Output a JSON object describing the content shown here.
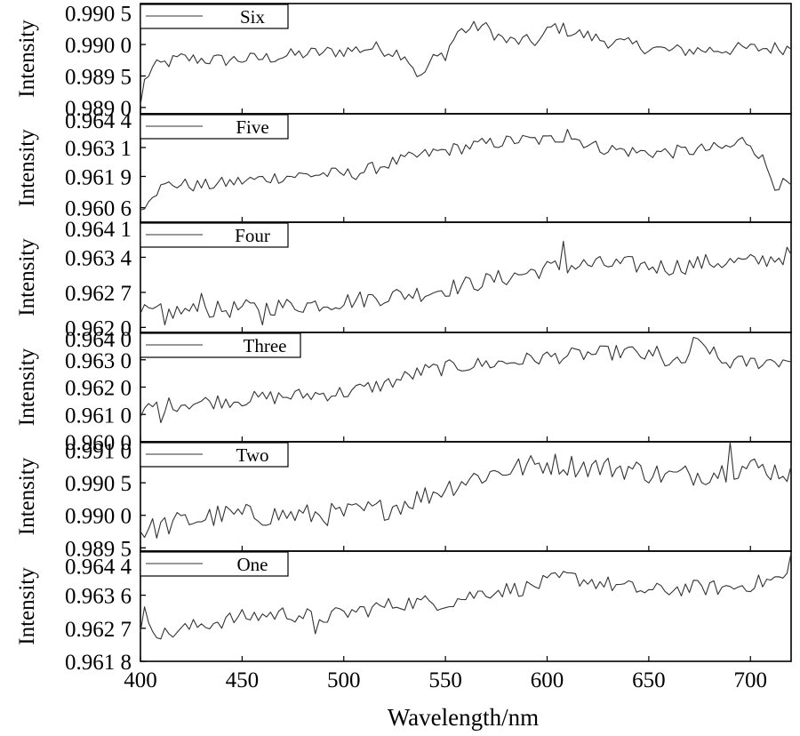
{
  "chart_data": {
    "type": "line",
    "xlabel": "Wavelength/nm",
    "xlim": [
      400,
      720
    ],
    "x_ticks": [
      "400",
      "450",
      "500",
      "550",
      "600",
      "650",
      "700"
    ],
    "x_tick_values": [
      400,
      450,
      500,
      550,
      600,
      650,
      700
    ],
    "x_step": 2,
    "panels": [
      {
        "name": "Six",
        "ylabel": "Intensity",
        "ylim": [
          0.9889,
          0.99065
        ],
        "y_ticks": [
          {
            "value": 0.989,
            "label": "0.989 0"
          },
          {
            "value": 0.9895,
            "label": "0.989 5"
          },
          {
            "value": 0.99,
            "label": "0.990 0"
          },
          {
            "value": 0.9905,
            "label": "0.990 5"
          }
        ],
        "anchors": [
          [
            400,
            0.98904
          ],
          [
            401,
            0.98935
          ],
          [
            405,
            0.9896
          ],
          [
            410,
            0.98968
          ],
          [
            420,
            0.98978
          ],
          [
            440,
            0.98975
          ],
          [
            460,
            0.98978
          ],
          [
            480,
            0.98985
          ],
          [
            500,
            0.9899
          ],
          [
            515,
            0.98995
          ],
          [
            530,
            0.98985
          ],
          [
            538,
            0.98945
          ],
          [
            543,
            0.98975
          ],
          [
            550,
            0.98985
          ],
          [
            556,
            0.9902
          ],
          [
            568,
            0.9903
          ],
          [
            580,
            0.99005
          ],
          [
            596,
            0.99005
          ],
          [
            603,
            0.9903
          ],
          [
            612,
            0.9902
          ],
          [
            630,
            0.99005
          ],
          [
            660,
            0.9899
          ],
          [
            720,
            0.98995
          ]
        ],
        "noise": 0.00011,
        "spikes": [
          [
            521,
            0.9901
          ],
          [
            569,
            0.99062
          ],
          [
            561,
            0.99052
          ],
          [
            575,
            0.9904
          ],
          [
            599,
            0.99048
          ],
          [
            617,
            0.99025
          ]
        ]
      },
      {
        "name": "Five",
        "ylabel": "Intensity",
        "ylim": [
          0.96,
          0.9645
        ],
        "y_ticks": [
          {
            "value": 0.9606,
            "label": "0.960 6"
          },
          {
            "value": 0.9619,
            "label": "0.961 9"
          },
          {
            "value": 0.9631,
            "label": "0.963 1"
          },
          {
            "value": 0.9644,
            "label": "0.964 4"
          }
        ],
        "anchors": [
          [
            400,
            0.9605
          ],
          [
            405,
            0.9612
          ],
          [
            415,
            0.9616
          ],
          [
            430,
            0.9615
          ],
          [
            450,
            0.9617
          ],
          [
            470,
            0.9619
          ],
          [
            490,
            0.962
          ],
          [
            505,
            0.962
          ],
          [
            525,
            0.9625
          ],
          [
            545,
            0.9629
          ],
          [
            565,
            0.9632
          ],
          [
            585,
            0.9634
          ],
          [
            600,
            0.9634
          ],
          [
            610,
            0.9636
          ],
          [
            625,
            0.9631
          ],
          [
            645,
            0.9629
          ],
          [
            660,
            0.9629
          ],
          [
            675,
            0.963
          ],
          [
            690,
            0.9631
          ],
          [
            696,
            0.9634
          ],
          [
            700,
            0.9633
          ],
          [
            706,
            0.9626
          ],
          [
            712,
            0.9616
          ],
          [
            720,
            0.9615
          ]
        ],
        "noise": 0.00028,
        "spikes": [
          [
            610,
            0.96385
          ],
          [
            599,
            0.96355
          ],
          [
            523,
            0.9628
          ],
          [
            528,
            0.9628
          ]
        ]
      },
      {
        "name": "Four",
        "ylabel": "Intensity",
        "ylim": [
          0.9619,
          0.9641
        ],
        "y_ticks": [
          {
            "value": 0.962,
            "label": "0.962 0"
          },
          {
            "value": 0.9627,
            "label": "0.962 7"
          },
          {
            "value": 0.9634,
            "label": "0.963 4"
          },
          {
            "value": 0.9641,
            "label": "0.964 1"
          }
        ],
        "anchors": [
          [
            400,
            0.96228
          ],
          [
            420,
            0.96232
          ],
          [
            440,
            0.96235
          ],
          [
            460,
            0.9624
          ],
          [
            480,
            0.96245
          ],
          [
            500,
            0.96252
          ],
          [
            520,
            0.96262
          ],
          [
            540,
            0.9627
          ],
          [
            560,
            0.96285
          ],
          [
            580,
            0.963
          ],
          [
            600,
            0.96318
          ],
          [
            620,
            0.96325
          ],
          [
            640,
            0.96325
          ],
          [
            660,
            0.9632
          ],
          [
            680,
            0.9633
          ],
          [
            700,
            0.9633
          ],
          [
            720,
            0.96345
          ]
        ],
        "noise": 0.00018,
        "spikes": [
          [
            430,
            0.96268
          ],
          [
            681,
            0.96378
          ],
          [
            608,
            0.96372
          ],
          [
            412,
            0.96205
          ],
          [
            460,
            0.96205
          ]
        ]
      },
      {
        "name": "Three",
        "ylabel": "Intensity",
        "ylim": [
          0.96,
          0.964
        ],
        "y_ticks": [
          {
            "value": 0.96,
            "label": "0.960 0"
          },
          {
            "value": 0.961,
            "label": "0.961 0"
          },
          {
            "value": 0.962,
            "label": "0.962 0"
          },
          {
            "value": 0.963,
            "label": "0.963 0"
          },
          {
            "value": 0.964,
            "label": "0.964 0"
          }
        ],
        "anchors": [
          [
            400,
            0.9609
          ],
          [
            405,
            0.9613
          ],
          [
            420,
            0.9614
          ],
          [
            440,
            0.9615
          ],
          [
            460,
            0.9616
          ],
          [
            480,
            0.9617
          ],
          [
            500,
            0.9618
          ],
          [
            520,
            0.9621
          ],
          [
            540,
            0.9626
          ],
          [
            560,
            0.9628
          ],
          [
            580,
            0.9629
          ],
          [
            600,
            0.9631
          ],
          [
            620,
            0.9632
          ],
          [
            640,
            0.9633
          ],
          [
            660,
            0.9629
          ],
          [
            667,
            0.9628
          ],
          [
            672,
            0.9636
          ],
          [
            680,
            0.9634
          ],
          [
            685,
            0.9629
          ],
          [
            700,
            0.9629
          ],
          [
            720,
            0.963
          ]
        ],
        "noise": 0.00028,
        "spikes": [
          [
            403,
            0.9607
          ],
          [
            410,
            0.9607
          ],
          [
            654,
            0.9635
          ]
        ]
      },
      {
        "name": "Two",
        "ylabel": "Intensity",
        "ylim": [
          0.98945,
          0.99113
        ],
        "y_ticks": [
          {
            "value": 0.9895,
            "label": "0.989 5"
          },
          {
            "value": 0.99,
            "label": "0.990 0"
          },
          {
            "value": 0.9905,
            "label": "0.990 5"
          },
          {
            "value": 0.991,
            "label": "0.991 0"
          }
        ],
        "anchors": [
          [
            400,
            0.98975
          ],
          [
            420,
            0.9899
          ],
          [
            440,
            0.99
          ],
          [
            460,
            0.99
          ],
          [
            480,
            0.99
          ],
          [
            500,
            0.99002
          ],
          [
            520,
            0.9901
          ],
          [
            540,
            0.9903
          ],
          [
            560,
            0.99055
          ],
          [
            580,
            0.9907
          ],
          [
            600,
            0.9908
          ],
          [
            620,
            0.99075
          ],
          [
            640,
            0.99072
          ],
          [
            660,
            0.9906
          ],
          [
            680,
            0.99065
          ],
          [
            700,
            0.99075
          ],
          [
            720,
            0.99065
          ]
        ],
        "noise": 0.00018,
        "spikes": [
          [
            405,
            0.9896
          ],
          [
            690,
            0.99112
          ],
          [
            609,
            0.991
          ],
          [
            483,
            0.98968
          ]
        ]
      },
      {
        "name": "One",
        "ylabel": "Intensity",
        "ylim": [
          0.9618,
          0.9648
        ],
        "y_ticks": [
          {
            "value": 0.9618,
            "label": "0.961 8"
          },
          {
            "value": 0.9627,
            "label": "0.962 7"
          },
          {
            "value": 0.9636,
            "label": "0.963 6"
          },
          {
            "value": 0.9644,
            "label": "0.964 4"
          }
        ],
        "anchors": [
          [
            400,
            0.9626
          ],
          [
            402,
            0.9631
          ],
          [
            410,
            0.9625
          ],
          [
            430,
            0.9628
          ],
          [
            450,
            0.963
          ],
          [
            470,
            0.9631
          ],
          [
            490,
            0.963
          ],
          [
            510,
            0.9632
          ],
          [
            530,
            0.9634
          ],
          [
            550,
            0.9634
          ],
          [
            570,
            0.9637
          ],
          [
            590,
            0.9638
          ],
          [
            610,
            0.9641
          ],
          [
            630,
            0.9639
          ],
          [
            650,
            0.9637
          ],
          [
            670,
            0.9638
          ],
          [
            690,
            0.9638
          ],
          [
            710,
            0.964
          ],
          [
            718,
            0.9641
          ],
          [
            720,
            0.9646
          ]
        ],
        "noise": 0.00022,
        "spikes": [
          [
            720,
            0.96475
          ],
          [
            486,
            0.96255
          ]
        ]
      }
    ]
  }
}
